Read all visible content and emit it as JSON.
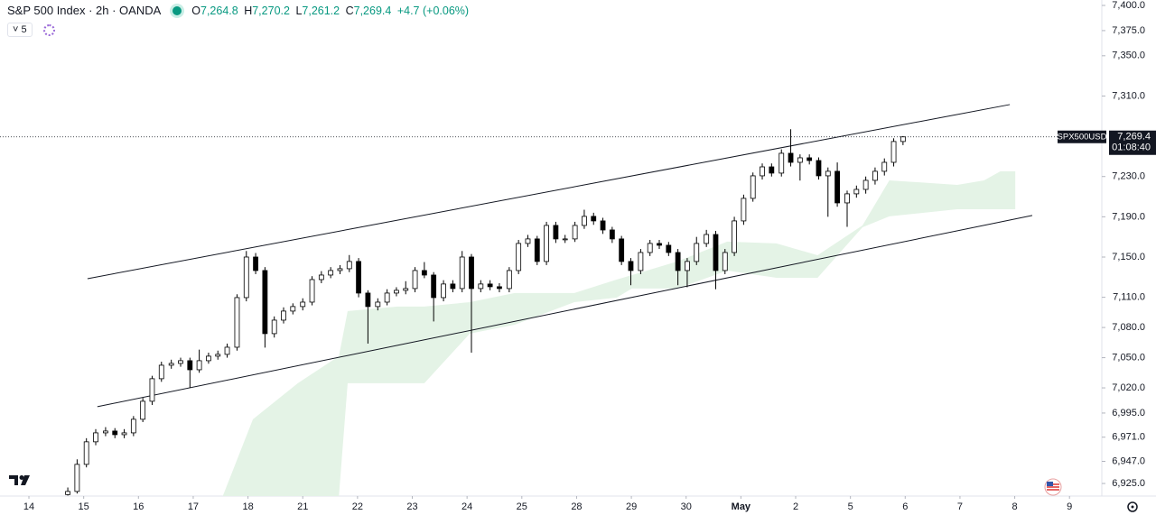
{
  "header": {
    "symbol": "S&P 500 Index · 2h · OANDA",
    "o_key": "O",
    "o": "7,264.8",
    "h_key": "H",
    "h": "7,270.2",
    "l_key": "L",
    "l": "7,261.2",
    "c_key": "C",
    "c": "7,269.4",
    "change": "+4.7 (+0.06%)",
    "indicator_count": "5"
  },
  "chart_data": {
    "type": "candlestick",
    "xlim": [
      -0.528,
      19.59
    ],
    "ylim": [
      6912.5,
      7405.4
    ],
    "xticks": [
      {
        "value": 0,
        "label": "14"
      },
      {
        "value": 1,
        "label": "15"
      },
      {
        "value": 2,
        "label": "16"
      },
      {
        "value": 3,
        "label": "17"
      },
      {
        "value": 4,
        "label": "18"
      },
      {
        "value": 5,
        "label": "21"
      },
      {
        "value": 6,
        "label": "22"
      },
      {
        "value": 7,
        "label": "23"
      },
      {
        "value": 8,
        "label": "24"
      },
      {
        "value": 9,
        "label": "25"
      },
      {
        "value": 10,
        "label": "28"
      },
      {
        "value": 11,
        "label": "29"
      },
      {
        "value": 12,
        "label": "30"
      },
      {
        "value": 13,
        "label": "May"
      },
      {
        "value": 14,
        "label": "2"
      },
      {
        "value": 15,
        "label": "5"
      },
      {
        "value": 16,
        "label": "6"
      },
      {
        "value": 17,
        "label": "7"
      },
      {
        "value": 18,
        "label": "8"
      },
      {
        "value": 19,
        "label": "9"
      }
    ],
    "yticks": [
      {
        "value": 7400,
        "label": "7,400.0"
      },
      {
        "value": 7375,
        "label": "7,375.0"
      },
      {
        "value": 7350,
        "label": "7,350.0"
      },
      {
        "value": 7310,
        "label": "7,310.0"
      },
      {
        "value": 7230,
        "label": "7,230.0"
      },
      {
        "value": 7190,
        "label": "7,190.0"
      },
      {
        "value": 7150,
        "label": "7,150.0"
      },
      {
        "value": 7110,
        "label": "7,110.0"
      },
      {
        "value": 7080,
        "label": "7,080.0"
      },
      {
        "value": 7050,
        "label": "7,050.0"
      },
      {
        "value": 7020,
        "label": "7,020.0"
      },
      {
        "value": 6995,
        "label": "6,995.0"
      },
      {
        "value": 6971,
        "label": "6,971.0"
      },
      {
        "value": 6947,
        "label": "6,947.0"
      },
      {
        "value": 6925,
        "label": "6,925.0"
      }
    ],
    "up_color": "#ffffff",
    "down_color": "#000000",
    "outline_color": "#000000",
    "x": [
      0.71,
      0.88,
      1.05,
      1.22,
      1.4,
      1.57,
      1.74,
      1.91,
      2.08,
      2.25,
      2.42,
      2.6,
      2.77,
      2.94,
      3.11,
      3.28,
      3.45,
      3.62,
      3.8,
      3.97,
      4.14,
      4.31,
      4.48,
      4.65,
      4.82,
      5.0,
      5.17,
      5.34,
      5.51,
      5.68,
      5.85,
      6.02,
      6.19,
      6.37,
      6.54,
      6.71,
      6.88,
      7.05,
      7.22,
      7.39,
      7.57,
      7.74,
      7.91,
      8.08,
      8.25,
      8.42,
      8.59,
      8.77,
      8.94,
      9.11,
      9.28,
      9.45,
      9.62,
      9.79,
      9.97,
      10.14,
      10.31,
      10.48,
      10.65,
      10.82,
      10.99,
      11.17,
      11.34,
      11.51,
      11.68,
      11.85,
      12.02,
      12.19,
      12.37,
      12.54,
      12.71,
      12.88,
      13.05,
      13.22,
      13.39,
      13.56,
      13.74,
      13.91,
      14.08,
      14.25,
      14.42,
      14.59,
      14.76,
      14.94,
      15.11,
      15.28,
      15.45,
      15.62,
      15.79,
      15.96
    ],
    "open": [
      6914,
      6917.1,
      6944,
      6966.4,
      6975.3,
      6977.1,
      6973.5,
      6975.3,
      6988.8,
      7006.7,
      7029.1,
      7042.5,
      7044.3,
      7047,
      7038,
      7047,
      7051.5,
      7053.3,
      7060.4,
      7109.7,
      7150,
      7136.6,
      7073.9,
      7087.3,
      7096.3,
      7100.8,
      7105.2,
      7127.6,
      7132.1,
      7136.6,
      7138.4,
      7145.6,
      7114.2,
      7100.8,
      7105.2,
      7114.2,
      7116.9,
      7118.7,
      7136.6,
      7132.1,
      7109.7,
      7123.2,
      7118.7,
      7150,
      7118.7,
      7123.2,
      7120.5,
      7118.7,
      7136.6,
      7163.5,
      7168,
      7145.6,
      7181.4,
      7168,
      7168,
      7181.4,
      7190.4,
      7185.9,
      7176.9,
      7168,
      7145.6,
      7136.6,
      7154.5,
      7163.5,
      7161.7,
      7154.5,
      7136.6,
      7145.6,
      7163.5,
      7172.4,
      7136.6,
      7154.5,
      7185.9,
      7208.3,
      7230.7,
      7239.6,
      7233.4,
      7253.1,
      7244.1,
      7248.6,
      7245.9,
      7230.7,
      7235.2,
      7203.8,
      7212.8,
      7217.2,
      7226.2,
      7235.2,
      7244.1,
      7264.8
    ],
    "high": [
      6921,
      6949,
      6970,
      6979,
      6981,
      6980,
      6979,
      6992,
      7010,
      7032,
      7046,
      7048,
      7050,
      7050,
      7058,
      7055,
      7057,
      7064,
      7113,
      7156,
      7154,
      7140,
      7091,
      7100,
      7104,
      7109,
      7131,
      7136,
      7140,
      7142,
      7152,
      7149,
      7117,
      7109,
      7118,
      7120,
      7126,
      7140,
      7145,
      7135,
      7127,
      7127,
      7156,
      7153,
      7127,
      7127,
      7124,
      7140,
      7167,
      7172,
      7171,
      7185,
      7185,
      7172,
      7185,
      7197,
      7194,
      7189,
      7180,
      7171,
      7149,
      7158,
      7167,
      7167,
      7165,
      7158,
      7149,
      7170,
      7177,
      7176,
      7158,
      7190,
      7212,
      7234,
      7243,
      7243,
      7257,
      7277,
      7252,
      7252,
      7249,
      7239,
      7244,
      7216,
      7221,
      7230,
      7239,
      7248,
      7268,
      7270.2
    ],
    "low": [
      6913,
      6915,
      6941,
      6963,
      6972,
      6970,
      6970,
      6972,
      6986,
      7003,
      7026,
      7039,
      7041,
      7020,
      7035,
      7044,
      7048,
      7050,
      7057,
      7106,
      7133,
      7060,
      7070,
      7084,
      7093,
      7097,
      7102,
      7124,
      7129,
      7133,
      7135,
      7110,
      7064,
      7097,
      7102,
      7111,
      7113,
      7115,
      7129,
      7086,
      7106,
      7115,
      7115,
      7055,
      7115,
      7117,
      7115,
      7115,
      7133,
      7160,
      7142,
      7142,
      7164,
      7164,
      7165,
      7178,
      7182,
      7173,
      7164,
      7142,
      7122,
      7133,
      7151,
      7158,
      7151,
      7122,
      7120,
      7142,
      7160,
      7118,
      7133,
      7151,
      7182,
      7205,
      7227,
      7230,
      7230,
      7240,
      7226,
      7242,
      7227,
      7190,
      7200,
      7180,
      7209,
      7213,
      7222,
      7231,
      7240,
      7261.2
    ],
    "close": [
      6917.1,
      6944,
      6966.4,
      6975.3,
      6977.1,
      6973.5,
      6975.3,
      6988.8,
      7006.7,
      7029.1,
      7042.5,
      7044.3,
      7047,
      7038,
      7047,
      7051.5,
      7053.3,
      7060.4,
      7109.7,
      7150,
      7136.6,
      7073.9,
      7087.3,
      7096.3,
      7100.8,
      7105.2,
      7127.6,
      7132.1,
      7136.6,
      7138.4,
      7145.6,
      7114.2,
      7100.8,
      7105.2,
      7114.2,
      7116.9,
      7118.7,
      7136.6,
      7132.1,
      7109.7,
      7123.2,
      7118.7,
      7150,
      7118.7,
      7123.2,
      7120.5,
      7118.7,
      7136.6,
      7163.5,
      7168,
      7145.6,
      7181.4,
      7168,
      7168,
      7181.4,
      7190.4,
      7185.9,
      7176.9,
      7168,
      7145.6,
      7136.6,
      7154.5,
      7163.5,
      7161.7,
      7154.5,
      7136.6,
      7145.6,
      7163.5,
      7172.4,
      7136.6,
      7154.5,
      7185.9,
      7208.3,
      7230.7,
      7239.6,
      7233.4,
      7253.1,
      7244.1,
      7248.6,
      7245.9,
      7230.7,
      7235.2,
      7203.8,
      7212.8,
      7217.2,
      7226.2,
      7235.2,
      7244.1,
      7264.8,
      7269.4
    ],
    "cloud": {
      "color": "#e4f3e6",
      "x": [
        3.54,
        4.09,
        4.91,
        5.66,
        5.82,
        6.73,
        7.22,
        8.05,
        8.87,
        9.96,
        10.73,
        11.01,
        11.84,
        12.75,
        13.65,
        14.4,
        15.22,
        15.71,
        16.95,
        17.44,
        17.74,
        18.01
      ],
      "upper": [
        6912.5,
        6988.8,
        7024.6,
        7051.5,
        7096.3,
        7100.8,
        7100.8,
        7105.2,
        7114.2,
        7114.2,
        7127.6,
        7132.1,
        7145.6,
        7165.3,
        7163.5,
        7151.8,
        7181.4,
        7226.2,
        7221.7,
        7226.2,
        7235.2,
        7235.2
      ],
      "lower": [
        6912.5,
        6912.5,
        6912.5,
        6912.5,
        7024.6,
        7024.6,
        7024.6,
        7073.9,
        7082.8,
        7105.2,
        7109.7,
        7118.7,
        7118.7,
        7136.6,
        7129.4,
        7129.4,
        7179.6,
        7190.4,
        7197.5,
        7197.5,
        7197.5,
        7197.5
      ]
    },
    "trendlines": [
      {
        "x": [
          1.07,
          17.91
        ],
        "y": [
          7128.5,
          7301.5
        ],
        "color": "#131722"
      },
      {
        "x": [
          1.25,
          18.32
        ],
        "y": [
          7001.3,
          7191.3
        ],
        "color": "#131722"
      }
    ],
    "last_price": {
      "value": 7269.4,
      "label": "7,269.4"
    },
    "last_symbol": "SPX500USD",
    "countdown": "01:08:40"
  }
}
